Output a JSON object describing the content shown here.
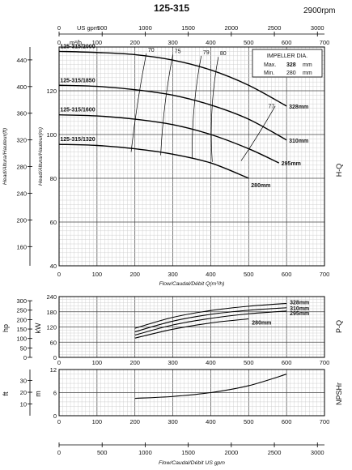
{
  "title": "125-315",
  "speed": "2900rpm",
  "impeller_box": {
    "title": "IMPELLER DIA.",
    "max_label": "Max.",
    "max_value": "328",
    "min_label": "Min.",
    "min_value": "280",
    "unit": "mm"
  },
  "axes": {
    "us_gpm_label": "US gpm",
    "m3h_label": "m³/h",
    "flow_label": "Flow/Caudal/Débit Q(m³/h)",
    "flow_label_bottom": "Flow/Caudal/Débit  US gpm",
    "head_ft_label": "Head/Altura/Hauteur(ft)",
    "head_m_label": "Head/Altura/Hauteur(m)",
    "hp_label": "hp",
    "kw_label": "kW",
    "ft_label": "ft",
    "m_label": "m",
    "side_hq": "H-Q",
    "side_pq": "P-Q",
    "side_npsh": "NPSHr"
  },
  "ticks": {
    "gpm": [
      "0",
      "500",
      "1000",
      "1500",
      "2000",
      "2500",
      "3000"
    ],
    "m3h": [
      "0",
      "100",
      "200",
      "300",
      "400",
      "500",
      "600",
      "700"
    ],
    "head_m": [
      "40",
      "60",
      "80",
      "100",
      "120"
    ],
    "head_ft": [
      "160",
      "200",
      "240",
      "280",
      "320",
      "360",
      "400",
      "440"
    ],
    "kw": [
      "0",
      "60",
      "120",
      "180",
      "240"
    ],
    "hp": [
      "0",
      "50",
      "100",
      "150",
      "200",
      "250",
      "300"
    ],
    "npsh_m": [
      "0",
      "6",
      "12"
    ],
    "npsh_ft": [
      "10",
      "20",
      "30"
    ]
  },
  "chart_data": [
    {
      "type": "line",
      "name": "H-Q",
      "xlabel": "Flow/Caudal/Débit Q(m³/h)",
      "ylabel": "Head/Altura/Hauteur(m)",
      "xlim": [
        0,
        700
      ],
      "ylim": [
        40,
        140
      ],
      "series": [
        {
          "name": "125-315/2000",
          "label_size": "328mm",
          "x": [
            0,
            100,
            200,
            300,
            400,
            500,
            600
          ],
          "y": [
            138,
            137.5,
            136.5,
            134,
            129.5,
            122.5,
            113
          ]
        },
        {
          "name": "125-315/1850",
          "label_size": "310mm",
          "x": [
            0,
            100,
            200,
            300,
            400,
            500,
            600
          ],
          "y": [
            122.5,
            122,
            120.5,
            118,
            113.5,
            107,
            97.5
          ]
        },
        {
          "name": "125-315/1600",
          "label_size": "295mm",
          "x": [
            0,
            100,
            200,
            300,
            400,
            500,
            580
          ],
          "y": [
            109,
            108.5,
            107,
            104.5,
            100,
            93.5,
            87
          ]
        },
        {
          "name": "125-315/1320",
          "label_size": "280mm",
          "x": [
            0,
            100,
            200,
            300,
            400,
            500
          ],
          "y": [
            95.5,
            95,
            93.5,
            91,
            87,
            80
          ]
        }
      ],
      "efficiency_labels": [
        "70",
        "75",
        "79",
        "80",
        "77"
      ]
    },
    {
      "type": "line",
      "name": "P-Q",
      "xlabel": "",
      "ylabel": "kW",
      "xlim": [
        0,
        700
      ],
      "ylim": [
        0,
        240
      ],
      "series": [
        {
          "name": "328mm",
          "x": [
            200,
            300,
            400,
            500,
            600
          ],
          "y": [
            115,
            158,
            185,
            202,
            213
          ]
        },
        {
          "name": "310mm",
          "x": [
            200,
            300,
            400,
            500,
            600
          ],
          "y": [
            101,
            143,
            170,
            186,
            196
          ]
        },
        {
          "name": "295mm",
          "x": [
            200,
            300,
            400,
            500,
            600
          ],
          "y": [
            88,
            128,
            154,
            172,
            183
          ]
        },
        {
          "name": "280mm",
          "x": [
            200,
            300,
            400,
            500
          ],
          "y": [
            76,
            111,
            136,
            152
          ]
        }
      ]
    },
    {
      "type": "line",
      "name": "NPSHr",
      "xlabel": "",
      "ylabel": "m",
      "xlim": [
        0,
        700
      ],
      "ylim": [
        0,
        12
      ],
      "series": [
        {
          "name": "NPSHr",
          "x": [
            200,
            300,
            400,
            500,
            600
          ],
          "y": [
            4.5,
            5.0,
            6.0,
            7.8,
            10.8
          ]
        }
      ]
    }
  ]
}
